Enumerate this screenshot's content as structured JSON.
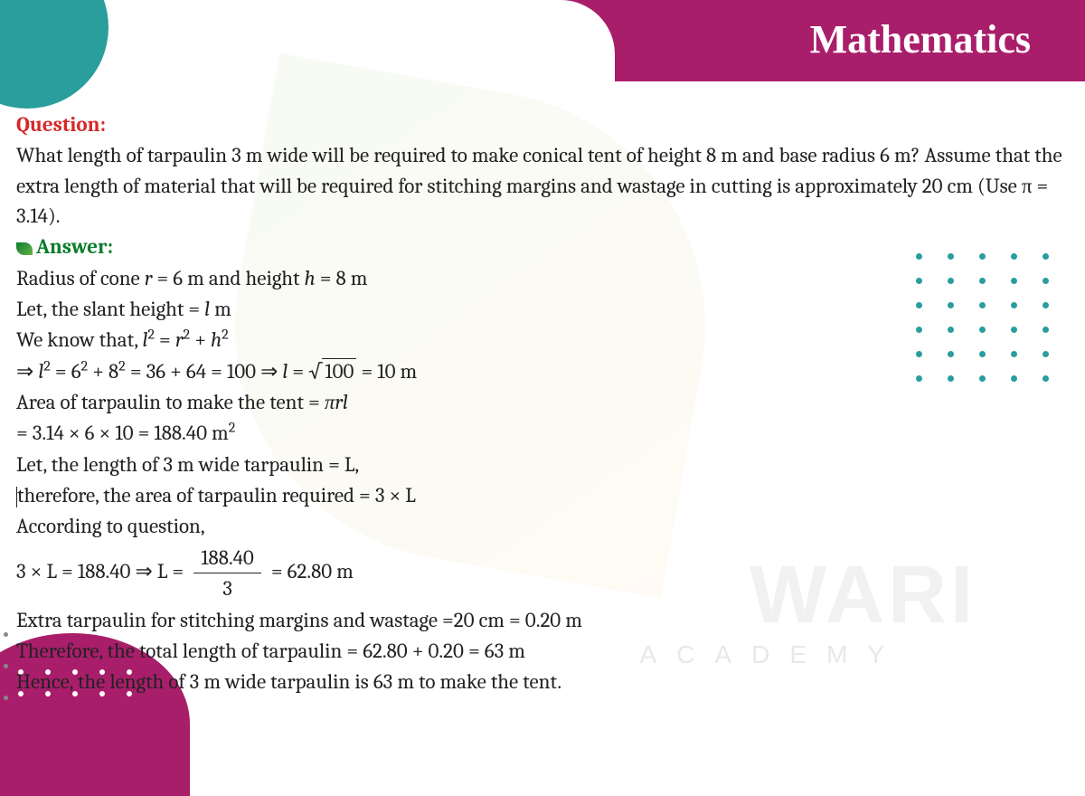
{
  "header": {
    "title": "Mathematics"
  },
  "labels": {
    "question": "Question:",
    "answer": "Answer:"
  },
  "question": {
    "text": "What length of tarpaulin 3 m wide will be required to make conical tent of height 8 m and base radius 6 m? Assume that the extra length of material that will be required for stitching margins and wastage in cutting is approximately 20 cm (Use π = 3.14)."
  },
  "answer": {
    "line1_a": "Radius of cone ",
    "line1_b": " = 6 m and height ",
    "line1_c": " = 8 m",
    "line2_a": "Let, the slant height = ",
    "line2_b": " m",
    "line3": "We know that, ",
    "line4_a": "⇒ ",
    "line4_b": " = 6",
    "line4_c": " + 8",
    "line4_d": " = 36 + 64 = 100  ⇒ ",
    "line4_e": " = ",
    "line4_f": " = 10 m",
    "line5": "Area of tarpaulin to make the tent = ",
    "line6": "= 3.14 × 6 × 10 = 188.40 m",
    "line7": "Let, the length of 3 m wide tarpaulin = L,",
    "line8": "therefore, the area of tarpaulin required = 3 × L",
    "line9": "According to question,",
    "line10_a": "3  ×  L  =   188.40  ⇒  L  =  ",
    "line10_num": "188.40",
    "line10_den": "3",
    "line10_b": "  = 62.80 m",
    "line11": "Extra tarpaulin for stitching margins and wastage =20 cm = 0.20 m",
    "line12": "Therefore, the total length of tarpaulin = 62.80 + 0.20 = 63 m",
    "line13": "Hence, the length of 3 m wide tarpaulin is 63 m to make the tent."
  },
  "watermark": {
    "main": "WARI",
    "sub": "ACADEMY"
  },
  "colors": {
    "teal": "#2a9d9d",
    "magenta": "#a91e6b",
    "question_label": "#d62828",
    "answer_label": "#0a7d2c",
    "text": "#222222",
    "background": "#ffffff"
  },
  "typography": {
    "body_fontsize": 23,
    "title_fontsize": 44,
    "watermark_fontsize": 90
  }
}
